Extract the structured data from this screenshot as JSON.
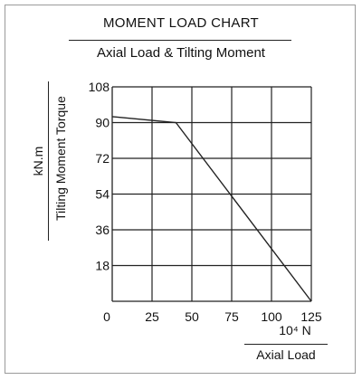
{
  "chart_data": {
    "type": "line",
    "title": "MOMENT LOAD CHART",
    "subtitle": "Axial Load & Tilting Moment",
    "xlabel": "Axial Load",
    "xunit": "10⁴ N",
    "ylabel": "Tilting Moment Torque",
    "yunit": "kN.m",
    "xlim": [
      0,
      125
    ],
    "ylim": [
      0,
      108
    ],
    "x_ticks": [
      0,
      25,
      50,
      75,
      100,
      125
    ],
    "y_ticks": [
      18,
      36,
      54,
      72,
      90,
      108
    ],
    "grid": true,
    "series": [
      {
        "x": [
          0,
          40,
          125
        ],
        "y": [
          93,
          90,
          0
        ]
      }
    ]
  },
  "colors": {
    "line": "#222222",
    "grid": "#222222"
  }
}
